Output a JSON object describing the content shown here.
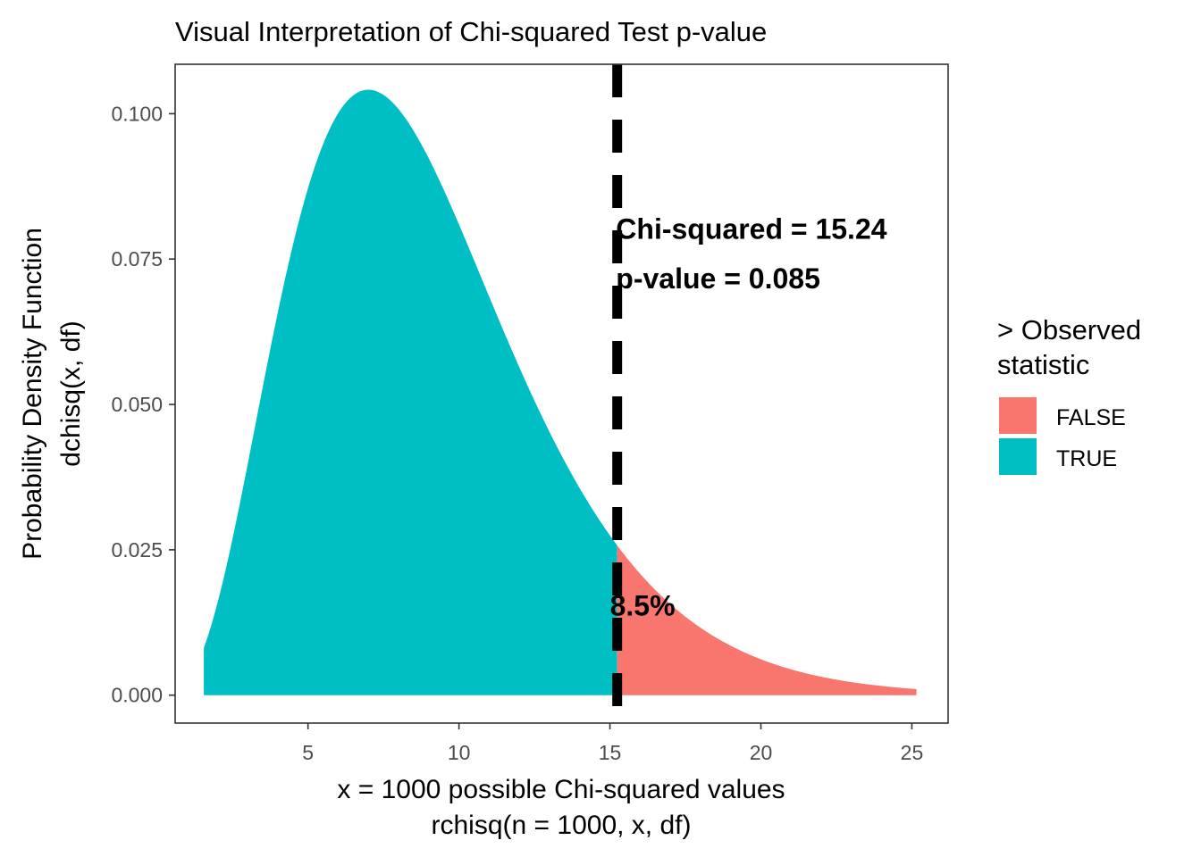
{
  "chart_data": {
    "type": "area",
    "title": "Visual Interpretation of Chi-squared Test p-value",
    "xlabel": [
      "x = 1000 possible Chi-squared values",
      "rchisq(n = 1000, x, df)"
    ],
    "ylabel": [
      "Probability Density Function",
      "dchisq(x, df)"
    ],
    "xlim": [
      0.6,
      26.2
    ],
    "ylim": [
      -0.0048,
      0.1085
    ],
    "x_ticks": [
      5,
      10,
      15,
      20,
      25
    ],
    "x_tick_labels": [
      "5",
      "10",
      "15",
      "20",
      "25"
    ],
    "y_ticks": [
      0,
      0.025,
      0.05,
      0.075,
      0.1
    ],
    "y_tick_labels": [
      "0.000",
      "0.025",
      "0.050",
      "0.075",
      "0.100"
    ],
    "distribution": {
      "name": "chi-squared",
      "df": 9
    },
    "x_range": [
      1.55,
      25.15
    ],
    "observed_statistic": 15.24,
    "series": [
      {
        "name": "TRUE",
        "color": "#00BFC4",
        "x_from": 1.55,
        "x_to": 15.24
      },
      {
        "name": "FALSE",
        "color": "#F8766D",
        "x_from": 15.24,
        "x_to": 25.15
      }
    ],
    "vline": {
      "x": 15.24,
      "style": "dashed",
      "color": "#000000"
    },
    "annotations": [
      {
        "text": "Chi-squared = 15.24",
        "x": 15.2,
        "y": 0.0785
      },
      {
        "text": "p-value = 0.085",
        "x": 15.2,
        "y": 0.07
      },
      {
        "text": "8.5%",
        "x": 15.0,
        "y": 0.0137
      }
    ],
    "legend": {
      "title": [
        "> Observed",
        "statistic"
      ],
      "position": "right",
      "items": [
        {
          "label": "FALSE",
          "color": "#F8766D"
        },
        {
          "label": "TRUE",
          "color": "#00BFC4"
        }
      ]
    },
    "grid": false
  }
}
